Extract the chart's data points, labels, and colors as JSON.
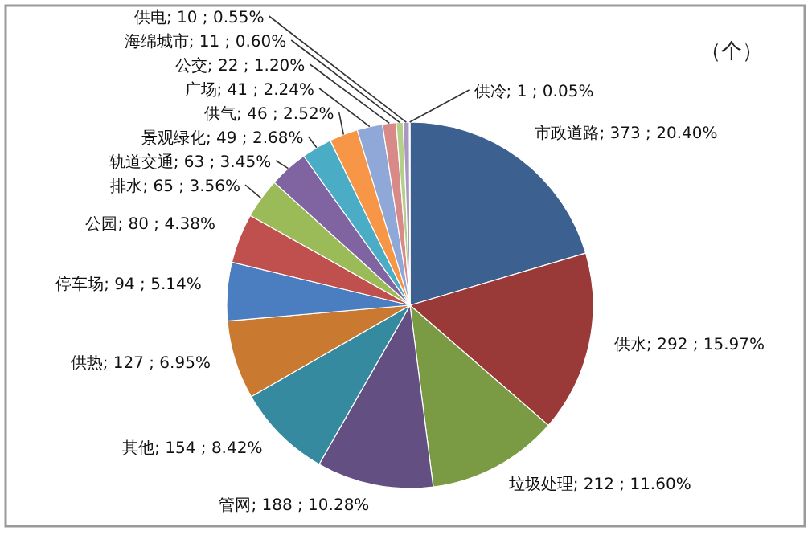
{
  "chart_data": {
    "type": "pie",
    "categories": [
      "市政道路",
      "供水",
      "垃圾处理",
      "管网",
      "其他",
      "供热",
      "停车场",
      "公园",
      "排水",
      "轨道交通",
      "景观绿化",
      "供气",
      "广场",
      "公交",
      "海绵城市",
      "供电",
      "供冷"
    ],
    "values": [
      373,
      292,
      212,
      188,
      154,
      127,
      94,
      80,
      65,
      63,
      49,
      46,
      41,
      22,
      11,
      10,
      1
    ],
    "value_labels": [
      "373 ; 20.40%",
      "292 ; 15.97%",
      "212 ; 11.60%",
      "188 ; 10.28%",
      "154 ; 8.42%",
      "127 ; 6.95%",
      "94 ; 5.14%",
      "80 ; 4.38%",
      "65 ; 3.56%",
      "63 ; 3.45%",
      "49 ; 2.68%",
      "46 ; 2.52%",
      "41 ; 2.24%",
      "22 ; 1.20%",
      "11 ; 0.60%",
      "10 ; 0.55%",
      "1 ; 0.05%"
    ],
    "colors": [
      "#3c6191",
      "#9a3a38",
      "#7a9a44",
      "#634f82",
      "#358aa0",
      "#c97a30",
      "#4a7ec0",
      "#c0504d",
      "#9bbb59",
      "#8064a2",
      "#4bacc6",
      "#f79646",
      "#8fa8d8",
      "#d88a89",
      "#b5cf8a",
      "#a898c2",
      "#80c4d8"
    ],
    "annotations": [
      "（个）"
    ]
  }
}
